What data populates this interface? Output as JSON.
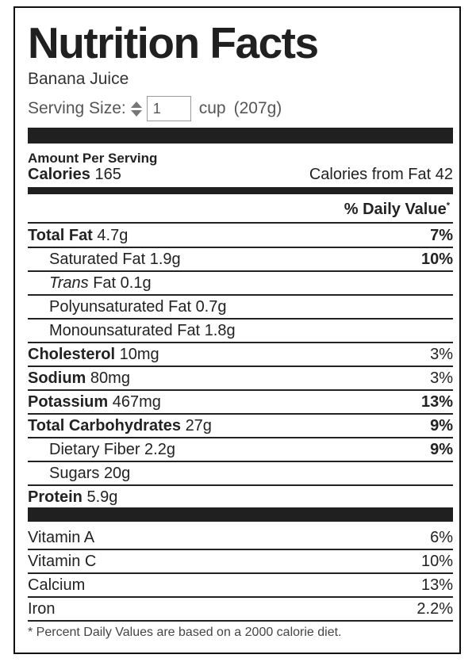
{
  "title": "Nutrition Facts",
  "food_name": "Banana Juice",
  "serving": {
    "label": "Serving Size:",
    "quantity": "1",
    "unit": "cup",
    "weight": "(207g)"
  },
  "amount_per_serving": "Amount Per Serving",
  "calories": {
    "label": "Calories",
    "value": "165",
    "from_fat_label": "Calories from Fat",
    "from_fat_value": "42"
  },
  "daily_value_header": "% Daily Value",
  "daily_value_marker": "*",
  "nutrients": {
    "total_fat": {
      "label": "Total Fat",
      "amount": "4.7g",
      "dv": "7%"
    },
    "saturated_fat": {
      "label": "Saturated Fat",
      "amount": "1.9g",
      "dv": "10%"
    },
    "trans_fat": {
      "label_italic": "Trans",
      "label": "Fat",
      "amount": "0.1g"
    },
    "polyunsaturated_fat": {
      "label": "Polyunsaturated Fat",
      "amount": "0.7g"
    },
    "monounsaturated_fat": {
      "label": "Monounsaturated Fat",
      "amount": "1.8g"
    },
    "cholesterol": {
      "label": "Cholesterol",
      "amount": "10mg",
      "dv": "3%"
    },
    "sodium": {
      "label": "Sodium",
      "amount": "80mg",
      "dv": "3%"
    },
    "potassium": {
      "label": "Potassium",
      "amount": "467mg",
      "dv": "13%"
    },
    "total_carbohydrates": {
      "label": "Total Carbohydrates",
      "amount": "27g",
      "dv": "9%"
    },
    "dietary_fiber": {
      "label": "Dietary Fiber",
      "amount": "2.2g",
      "dv": "9%"
    },
    "sugars": {
      "label": "Sugars",
      "amount": "20g"
    },
    "protein": {
      "label": "Protein",
      "amount": "5.9g"
    }
  },
  "vitamins": {
    "vitamin_a": {
      "label": "Vitamin A",
      "dv": "6%"
    },
    "vitamin_c": {
      "label": "Vitamin C",
      "dv": "10%"
    },
    "calcium": {
      "label": "Calcium",
      "dv": "13%"
    },
    "iron": {
      "label": "Iron",
      "dv": "2.2%"
    }
  },
  "footnote": "* Percent Daily Values are based on a 2000 calorie diet."
}
